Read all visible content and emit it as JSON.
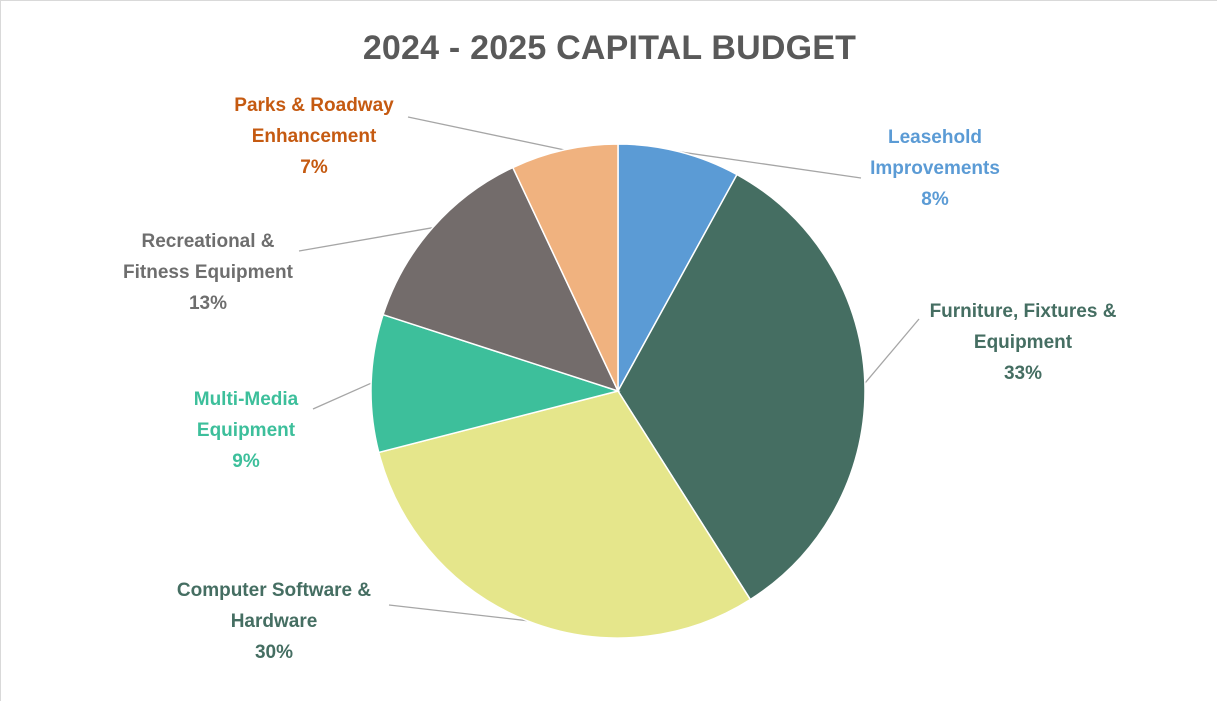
{
  "chart_data": {
    "type": "pie",
    "title": "2024 - 2025 CAPITAL BUDGET",
    "start_angle_deg": 0,
    "direction": "clockwise",
    "legend": "none",
    "slices": [
      {
        "category": "Leasehold Improvements",
        "label_lines": [
          "Leasehold",
          "Improvements"
        ],
        "value": 8,
        "value_label": "8%",
        "color": "#5B9BD5",
        "label_color": "#5B9BD5"
      },
      {
        "category": "Furniture, Fixtures & Equipment",
        "label_lines": [
          "Furniture, Fixtures &",
          "Equipment"
        ],
        "value": 33,
        "value_label": "33%",
        "color": "#456E62",
        "label_color": "#456E62"
      },
      {
        "category": "Computer Software & Hardware",
        "label_lines": [
          "Computer Software &",
          "Hardware"
        ],
        "value": 30,
        "value_label": "30%",
        "color": "#E5E68B",
        "label_color": "#456E62"
      },
      {
        "category": "Multi-Media Equipment",
        "label_lines": [
          "Multi-Media",
          "Equipment"
        ],
        "value": 9,
        "value_label": "9%",
        "color": "#3DBF9B",
        "label_color": "#3DBF9B"
      },
      {
        "category": "Recreational & Fitness Equipment",
        "label_lines": [
          "Recreational &",
          "Fitness Equipment"
        ],
        "value": 13,
        "value_label": "13%",
        "color": "#736C6B",
        "label_color": "#6E6E6E"
      },
      {
        "category": "Parks & Roadway Enhancement",
        "label_lines": [
          "Parks & Roadway",
          "Enhancement"
        ],
        "value": 7,
        "value_label": "7%",
        "color": "#F0B27F",
        "label_color": "#C55A11"
      }
    ]
  }
}
